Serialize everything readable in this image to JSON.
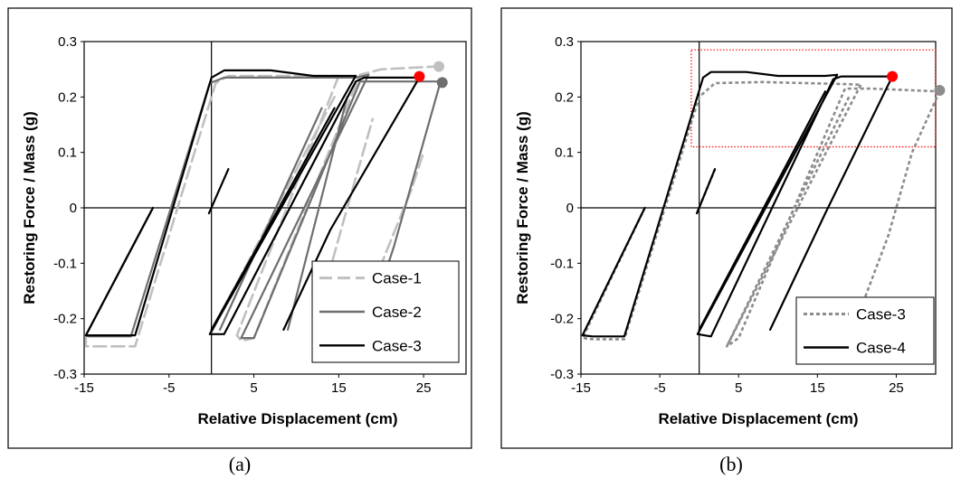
{
  "chart_data": [
    {
      "type": "line",
      "panel_caption": "(a)",
      "xlabel": "Relative Displacement (cm)",
      "ylabel": "Restoring Force / Mass (g)",
      "xlim": [
        -15,
        30
      ],
      "ylim": [
        -0.3,
        0.3
      ],
      "xticks": [
        "-15",
        "-5",
        "5",
        "15",
        "25"
      ],
      "yticks": [
        "0.3",
        "0.2",
        "0.1",
        "0",
        "-0.1",
        "-0.2",
        "-0.3"
      ],
      "legend_position": "bottom-right",
      "series": [
        {
          "name": "Case-1",
          "color": "#c0c0c0",
          "dash": "dashed",
          "segments": [
            [
              [
                -6.9,
                0.0
              ],
              [
                -14.8,
                -0.23
              ],
              [
                -14.8,
                -0.25
              ],
              [
                -9.0,
                -0.25
              ],
              [
                0.5,
                0.225
              ],
              [
                2.0,
                0.238
              ],
              [
                15.0,
                0.238
              ]
            ],
            [
              [
                15.0,
                0.238
              ],
              [
                3.0,
                -0.23
              ],
              [
                3.5,
                -0.24
              ],
              [
                5.0,
                -0.235
              ],
              [
                17.5,
                0.24
              ],
              [
                20.0,
                0.25
              ],
              [
                26.5,
                0.255
              ]
            ],
            [
              [
                14.5,
                0.2
              ],
              [
                -0.2,
                -0.23
              ]
            ],
            [
              [
                19.0,
                -0.14
              ],
              [
                23.5,
                0.03
              ],
              [
                25.0,
                0.1
              ]
            ],
            [
              [
                12.0,
                -0.22
              ],
              [
                16.0,
                0.0
              ],
              [
                19.0,
                0.16
              ]
            ]
          ],
          "end_marker": {
            "x": 26.8,
            "y": 0.255
          }
        },
        {
          "name": "Case-2",
          "color": "#6e6e6e",
          "dash": "solid",
          "segments": [
            [
              [
                -6.9,
                0.0
              ],
              [
                -14.8,
                -0.23
              ],
              [
                -14.5,
                -0.232
              ],
              [
                -9.5,
                -0.232
              ],
              [
                -0.2,
                0.225
              ],
              [
                1.5,
                0.235
              ],
              [
                17.0,
                0.235
              ],
              [
                18.5,
                0.24
              ]
            ],
            [
              [
                18.5,
                0.24
              ],
              [
                3.5,
                -0.235
              ],
              [
                5.0,
                -0.235
              ],
              [
                17.5,
                0.228
              ],
              [
                27.0,
                0.228
              ]
            ],
            [
              [
                27.0,
                0.228
              ],
              [
                21.5,
                -0.07
              ],
              [
                18.5,
                -0.21
              ]
            ],
            [
              [
                16.0,
                0.2
              ],
              [
                9.0,
                -0.22
              ]
            ],
            [
              [
                13.0,
                0.18
              ],
              [
                1.0,
                -0.22
              ]
            ]
          ],
          "end_marker": {
            "x": 27.2,
            "y": 0.226
          }
        },
        {
          "name": "Case-3",
          "color": "#000000",
          "dash": "solid",
          "segments": [
            [
              [
                -6.9,
                0.0
              ],
              [
                -14.8,
                -0.23
              ],
              [
                -14.0,
                -0.23
              ],
              [
                -9.0,
                -0.23
              ],
              [
                0.0,
                0.235
              ],
              [
                1.5,
                0.248
              ],
              [
                7.0,
                0.248
              ],
              [
                12.0,
                0.238
              ],
              [
                17.0,
                0.238
              ]
            ],
            [
              [
                17.0,
                0.238
              ],
              [
                -0.2,
                -0.228
              ],
              [
                1.5,
                -0.228
              ],
              [
                17.0,
                0.228
              ],
              [
                18.0,
                0.235
              ],
              [
                24.5,
                0.235
              ]
            ],
            [
              [
                24.5,
                0.235
              ],
              [
                14.0,
                -0.04
              ],
              [
                8.5,
                -0.22
              ]
            ],
            [
              [
                -0.3,
                -0.01
              ],
              [
                2.0,
                0.07
              ]
            ],
            [
              [
                14.5,
                0.18
              ],
              [
                0.0,
                -0.22
              ]
            ]
          ],
          "end_marker": {
            "x": 24.5,
            "y": 0.237,
            "color": "#ff0000"
          }
        }
      ]
    },
    {
      "type": "line",
      "panel_caption": "(b)",
      "xlabel": "Relative Displacement (cm)",
      "ylabel": "Restoring Force / Mass (g)",
      "xlim": [
        -15,
        30
      ],
      "ylim": [
        -0.3,
        0.3
      ],
      "xticks": [
        "-15",
        "-5",
        "5",
        "15",
        "25"
      ],
      "yticks": [
        "0.3",
        "0.2",
        "0.1",
        "0",
        "-0.1",
        "-0.2",
        "-0.3"
      ],
      "legend_position": "bottom-right",
      "zoom_box": {
        "x": [
          -1.0,
          31.0
        ],
        "y": [
          0.11,
          0.285
        ],
        "color": "#ff0000"
      },
      "series": [
        {
          "name": "Case-3",
          "color": "#8c8c8c",
          "dash": "dotted",
          "segments": [
            [
              [
                -6.9,
                0.0
              ],
              [
                -14.8,
                -0.235
              ],
              [
                -13.5,
                -0.237
              ],
              [
                -9.5,
                -0.237
              ],
              [
                0.0,
                0.2
              ],
              [
                2.0,
                0.225
              ],
              [
                8.0,
                0.227
              ],
              [
                19.0,
                0.223
              ],
              [
                20.5,
                0.222
              ]
            ],
            [
              [
                20.5,
                0.222
              ],
              [
                3.5,
                -0.25
              ],
              [
                5.0,
                -0.235
              ],
              [
                18.5,
                0.215
              ],
              [
                22.0,
                0.215
              ],
              [
                30.5,
                0.21
              ]
            ],
            [
              [
                30.5,
                0.21
              ],
              [
                27.0,
                0.1
              ],
              [
                24.0,
                -0.05
              ],
              [
                19.5,
                -0.22
              ]
            ],
            [
              [
                19.0,
                0.2
              ],
              [
                3.5,
                -0.25
              ]
            ],
            [
              [
                -0.3,
                -0.01
              ],
              [
                2.0,
                0.07
              ]
            ]
          ],
          "end_marker": {
            "x": 30.5,
            "y": 0.212
          }
        },
        {
          "name": "Case-4",
          "color": "#000000",
          "dash": "solid",
          "segments": [
            [
              [
                -6.9,
                0.0
              ],
              [
                -14.8,
                -0.23
              ],
              [
                -13.5,
                -0.232
              ],
              [
                -9.5,
                -0.232
              ],
              [
                0.5,
                0.235
              ],
              [
                1.5,
                0.245
              ],
              [
                6.0,
                0.245
              ],
              [
                10.0,
                0.238
              ],
              [
                16.0,
                0.238
              ],
              [
                17.5,
                0.24
              ]
            ],
            [
              [
                17.5,
                0.24
              ],
              [
                -0.2,
                -0.228
              ],
              [
                1.5,
                -0.232
              ],
              [
                17.0,
                0.232
              ],
              [
                18.0,
                0.237
              ],
              [
                24.5,
                0.237
              ]
            ],
            [
              [
                24.5,
                0.237
              ],
              [
                16.0,
                -0.01
              ],
              [
                9.0,
                -0.22
              ]
            ],
            [
              [
                -0.3,
                -0.01
              ],
              [
                2.0,
                0.07
              ]
            ],
            [
              [
                16.0,
                0.21
              ],
              [
                0.0,
                -0.22
              ]
            ]
          ],
          "end_marker": {
            "x": 24.5,
            "y": 0.237,
            "color": "#ff0000"
          }
        }
      ]
    }
  ]
}
